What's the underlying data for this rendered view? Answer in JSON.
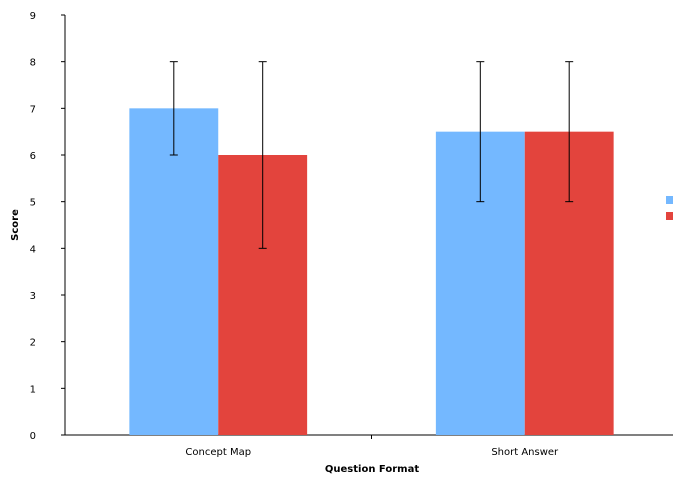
{
  "chart_data": {
    "type": "bar",
    "title": "",
    "xlabel": "Question Format",
    "ylabel": "Score",
    "categories": [
      "Concept Map",
      "Short Answer"
    ],
    "ylim": [
      0,
      9
    ],
    "yticks": [
      0,
      1,
      2,
      3,
      4,
      5,
      6,
      7,
      8,
      9
    ],
    "series": [
      {
        "color": "#74b8ff",
        "values": [
          7,
          6.5
        ],
        "error_low": [
          6,
          5
        ],
        "error_high": [
          8,
          8
        ]
      },
      {
        "color": "#e3443d",
        "values": [
          6,
          6.5
        ],
        "error_low": [
          4,
          5
        ],
        "error_high": [
          8,
          8
        ]
      }
    ],
    "legend": {
      "position": "right",
      "labels_visible": false
    },
    "grid": false
  }
}
